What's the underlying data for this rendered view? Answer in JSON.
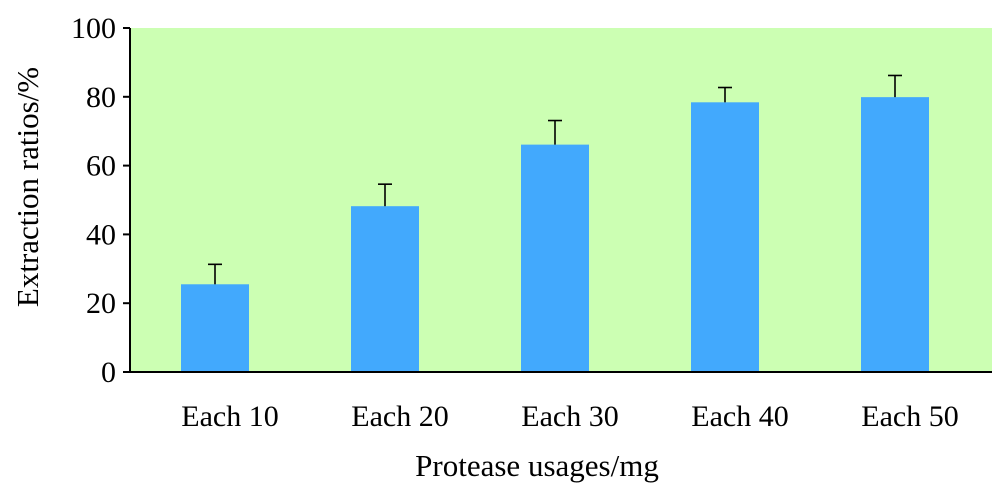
{
  "chart_data": {
    "type": "bar",
    "title": "",
    "xlabel": "Protease usages/mg",
    "ylabel": "Extraction ratios/%",
    "ylim": [
      0,
      100
    ],
    "yticks": [
      "0",
      "20",
      "40",
      "60",
      "80",
      "100"
    ],
    "grid": false,
    "categories": [
      "Each 10",
      "Each 20",
      "Each 30",
      "Each 40",
      "Each 50"
    ],
    "values": [
      25.5,
      48.2,
      66.1,
      78.4,
      79.9
    ],
    "error_plus": [
      5.8,
      6.4,
      7.0,
      4.3,
      6.3
    ],
    "colors": {
      "plot_background": "#ccffb3",
      "bar": "#42a9fd",
      "axis": "#000000"
    }
  }
}
